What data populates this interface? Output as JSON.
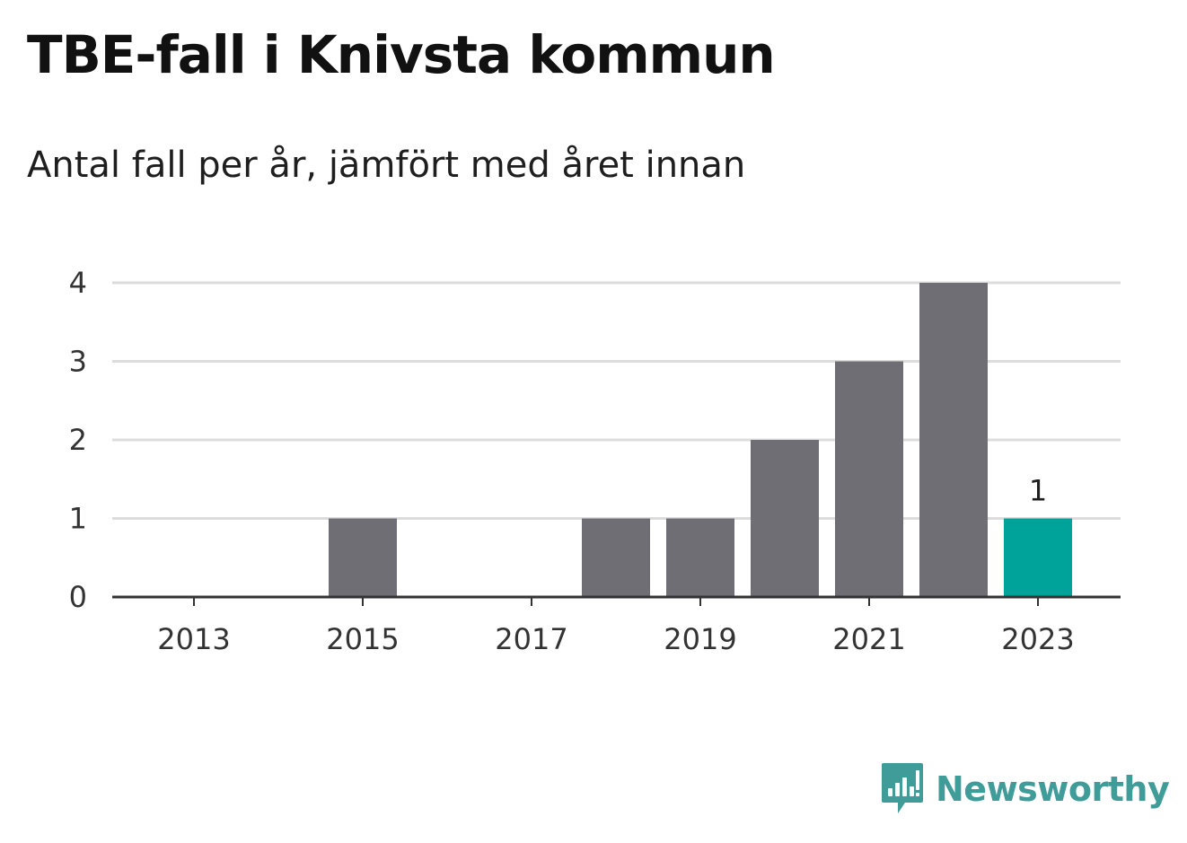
{
  "title": "TBE-fall i Knivsta kommun",
  "subtitle": "Antal fall per år, jämfört med året innan",
  "brand": {
    "name": "Newsworthy",
    "logo_icon": "chat-bubble-bar-chart-icon",
    "color": "#3f9c98"
  },
  "colors": {
    "bar": "#6f6e74",
    "highlight": "#00a39a",
    "grid": "#dcdcdc",
    "axis": "#333333"
  },
  "chart_data": {
    "type": "bar",
    "categories": [
      "2013",
      "2014",
      "2015",
      "2016",
      "2017",
      "2018",
      "2019",
      "2020",
      "2021",
      "2022",
      "2023"
    ],
    "values": [
      0,
      0,
      1,
      0,
      0,
      1,
      1,
      2,
      3,
      4,
      1
    ],
    "highlight_category": "2023",
    "data_labels": [
      {
        "category": "2023",
        "label": "1"
      }
    ],
    "x_tick_labels": [
      "2013",
      "2015",
      "2017",
      "2019",
      "2021",
      "2023"
    ],
    "y_ticks": [
      0,
      1,
      2,
      3,
      4
    ],
    "ylim": [
      0,
      4
    ],
    "xlabel": "",
    "ylabel": "",
    "grid": true
  }
}
